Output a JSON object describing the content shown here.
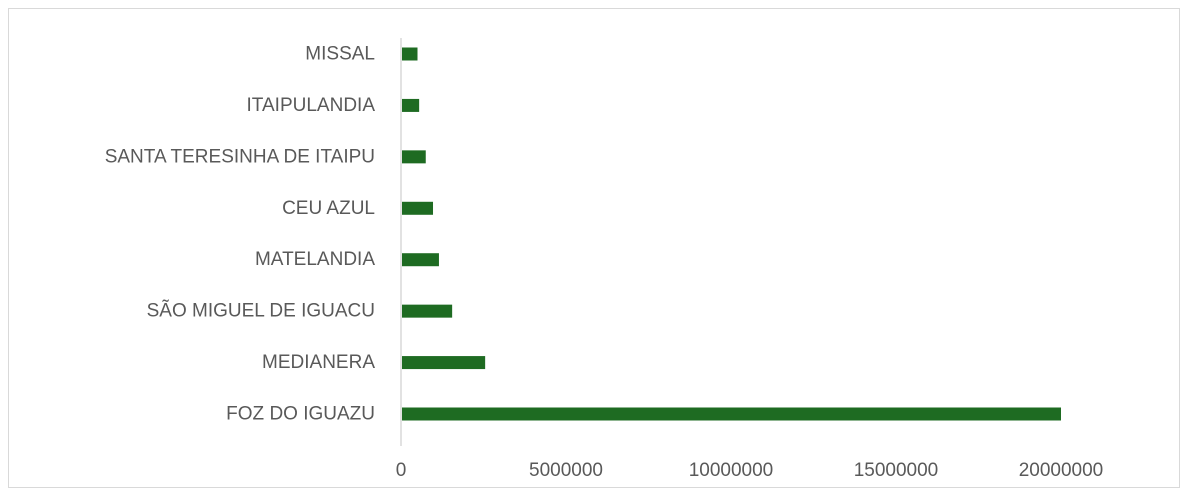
{
  "chart_data": {
    "type": "bar",
    "orientation": "horizontal",
    "categories": [
      "MISSAL",
      "ITAIPULANDIA",
      "SANTA TERESINHA DE ITAIPU",
      "CEU AZUL",
      "MATELANDIA",
      "SÃO MIGUEL DE IGUACU",
      "MEDIANERA",
      "FOZ DO IGUAZU"
    ],
    "values": [
      500000,
      550000,
      750000,
      970000,
      1150000,
      1550000,
      2550000,
      20000000
    ],
    "xlim": [
      0,
      23000000
    ],
    "xticks": [
      0,
      5000000,
      10000000,
      15000000,
      20000000
    ],
    "xtick_labels": [
      "0",
      "5000000",
      "10000000",
      "15000000",
      "20000000"
    ],
    "title": "",
    "xlabel": "",
    "ylabel": "",
    "grid": false,
    "legend": "none",
    "bar_color": "#1e6b22",
    "axis_color": "#d9d9d9"
  }
}
